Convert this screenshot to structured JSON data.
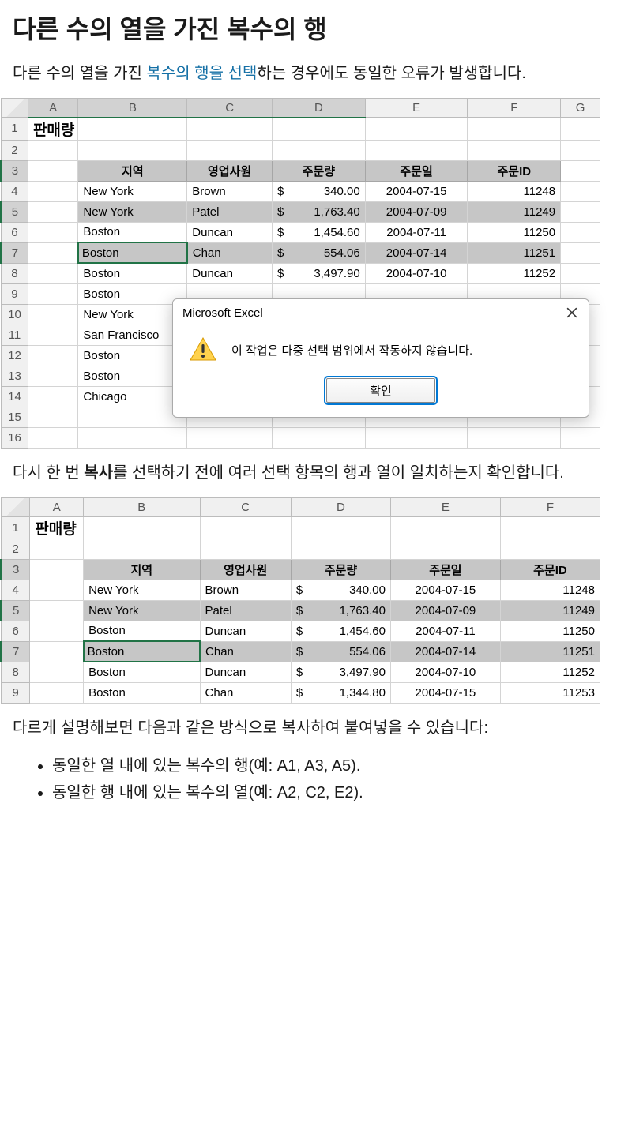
{
  "heading": "다른 수의 열을 가진 복수의 행",
  "para1_before": "다른 수의 열을 가진 ",
  "para1_link": "복수의 행을 선택",
  "para1_after": "하는 경우에도 동일한 오류가 발생합니다.",
  "para2_before": "다시 한 번 ",
  "para2_bold": "복사",
  "para2_after": "를 선택하기 전에 여러 선택 항목의 행과 열이 일치하는지 확인합니다.",
  "para3": "다르게 설명해보면 다음과 같은 방식으로 복사하여 붙여넣을 수 있습니다:",
  "bullets": [
    "동일한 열 내에 있는 복수의 행(예: A1, A3, A5).",
    "동일한 행 내에 있는 복수의 열(예: A2, C2, E2)."
  ],
  "excel1": {
    "columns": [
      "A",
      "B",
      "C",
      "D",
      "E",
      "F",
      "G"
    ],
    "selected_col_headers": [
      0,
      1,
      2,
      3
    ],
    "title_cell": "판매량",
    "table_headers": [
      "지역",
      "영업사원",
      "주문량",
      "주문일",
      "주문ID"
    ],
    "rows": [
      {
        "num": 1,
        "title": true
      },
      {
        "num": 2
      },
      {
        "num": 3,
        "header": true,
        "sel": true
      },
      {
        "num": 4,
        "cells": [
          "New York",
          "Brown",
          "340.00",
          "2004-07-15",
          "11248"
        ]
      },
      {
        "num": 5,
        "cells": [
          "New York",
          "Patel",
          "1,763.40",
          "2004-07-09",
          "11249"
        ],
        "sel": true
      },
      {
        "num": 6,
        "cells": [
          "Boston",
          "Duncan",
          "1,454.60",
          "2004-07-11",
          "11250"
        ]
      },
      {
        "num": 7,
        "cells": [
          "Boston",
          "Chan",
          "554.06",
          "2004-07-14",
          "11251"
        ],
        "sel": true,
        "active": 0
      },
      {
        "num": 8,
        "cells": [
          "Boston",
          "Duncan",
          "3,497.90",
          "2004-07-10",
          "11252"
        ]
      },
      {
        "num": 9,
        "cells": [
          "Boston",
          "",
          "",
          "",
          ""
        ]
      },
      {
        "num": 10,
        "cells": [
          "New York",
          "",
          "",
          "",
          ""
        ]
      },
      {
        "num": 11,
        "cells": [
          "San Francisco",
          "",
          "",
          "",
          ""
        ]
      },
      {
        "num": 12,
        "cells": [
          "Boston",
          "",
          "",
          "",
          ""
        ]
      },
      {
        "num": 13,
        "cells": [
          "Boston",
          "",
          "",
          "",
          ""
        ]
      },
      {
        "num": 14,
        "cells": [
          "Chicago",
          "",
          "",
          "",
          ""
        ]
      },
      {
        "num": 15
      },
      {
        "num": 16
      }
    ],
    "dialog": {
      "title": "Microsoft Excel",
      "message": "이 작업은 다중 선택 범위에서 작동하지 않습니다.",
      "ok": "확인"
    }
  },
  "excel2": {
    "columns": [
      "A",
      "B",
      "C",
      "D",
      "E",
      "F"
    ],
    "title_cell": "판매량",
    "table_headers": [
      "지역",
      "영업사원",
      "주문량",
      "주문일",
      "주문ID"
    ],
    "rows": [
      {
        "num": 1,
        "title": true
      },
      {
        "num": 2
      },
      {
        "num": 3,
        "header": true,
        "sel": true
      },
      {
        "num": 4,
        "cells": [
          "New York",
          "Brown",
          "340.00",
          "2004-07-15",
          "11248"
        ]
      },
      {
        "num": 5,
        "cells": [
          "New York",
          "Patel",
          "1,763.40",
          "2004-07-09",
          "11249"
        ],
        "sel": true
      },
      {
        "num": 6,
        "cells": [
          "Boston",
          "Duncan",
          "1,454.60",
          "2004-07-11",
          "11250"
        ]
      },
      {
        "num": 7,
        "cells": [
          "Boston",
          "Chan",
          "554.06",
          "2004-07-14",
          "11251"
        ],
        "sel": true,
        "active": 0
      },
      {
        "num": 8,
        "cells": [
          "Boston",
          "Duncan",
          "3,497.90",
          "2004-07-10",
          "11252"
        ]
      },
      {
        "num": 9,
        "cells": [
          "Boston",
          "Chan",
          "1,344.80",
          "2004-07-15",
          "11253"
        ],
        "partial": true
      }
    ]
  }
}
